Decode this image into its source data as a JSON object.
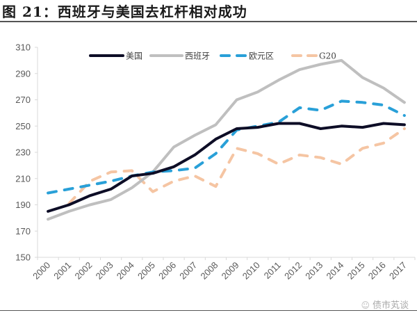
{
  "figure": {
    "title": "图 21：西班牙与美国去杠杆相对成功",
    "watermark": "债市芄谈",
    "watermark_icon": "wechat-icon"
  },
  "chart_data": {
    "type": "line",
    "title": "",
    "xlabel": "",
    "ylabel": "",
    "ylim": [
      150,
      310
    ],
    "yticks": [
      150,
      170,
      190,
      210,
      230,
      250,
      270,
      290,
      310
    ],
    "grid": false,
    "legend_position": "top",
    "categories": [
      "2000",
      "2001",
      "2002",
      "2003",
      "2004",
      "2005",
      "2006",
      "2007",
      "2008",
      "2009",
      "2010",
      "2011",
      "2012",
      "2013",
      "2014",
      "2015",
      "2016",
      "2017"
    ],
    "series": [
      {
        "name": "美国",
        "style": "solid",
        "color": "#0d0d26",
        "values": [
          185,
          190,
          197,
          202,
          212,
          214,
          219,
          228,
          240,
          248,
          249,
          252,
          252,
          248,
          250,
          249,
          252,
          251
        ]
      },
      {
        "name": "西班牙",
        "style": "solid",
        "color": "#bfbfbf",
        "values": [
          179,
          185,
          190,
          194,
          203,
          215,
          234,
          243,
          251,
          270,
          276,
          285,
          293,
          297,
          300,
          287,
          279,
          268
        ]
      },
      {
        "name": "欧元区",
        "style": "dashed",
        "color": "#29a0d8",
        "values": [
          199,
          202,
          205,
          208,
          212,
          215,
          216,
          218,
          229,
          247,
          250,
          253,
          264,
          262,
          269,
          268,
          266,
          258
        ]
      },
      {
        "name": "G20",
        "style": "dashed",
        "color": "#f5c5a3",
        "values": [
          null,
          191,
          208,
          215,
          216,
          200,
          208,
          212,
          204,
          233,
          229,
          221,
          228,
          226,
          221,
          233,
          237,
          248
        ]
      }
    ]
  }
}
